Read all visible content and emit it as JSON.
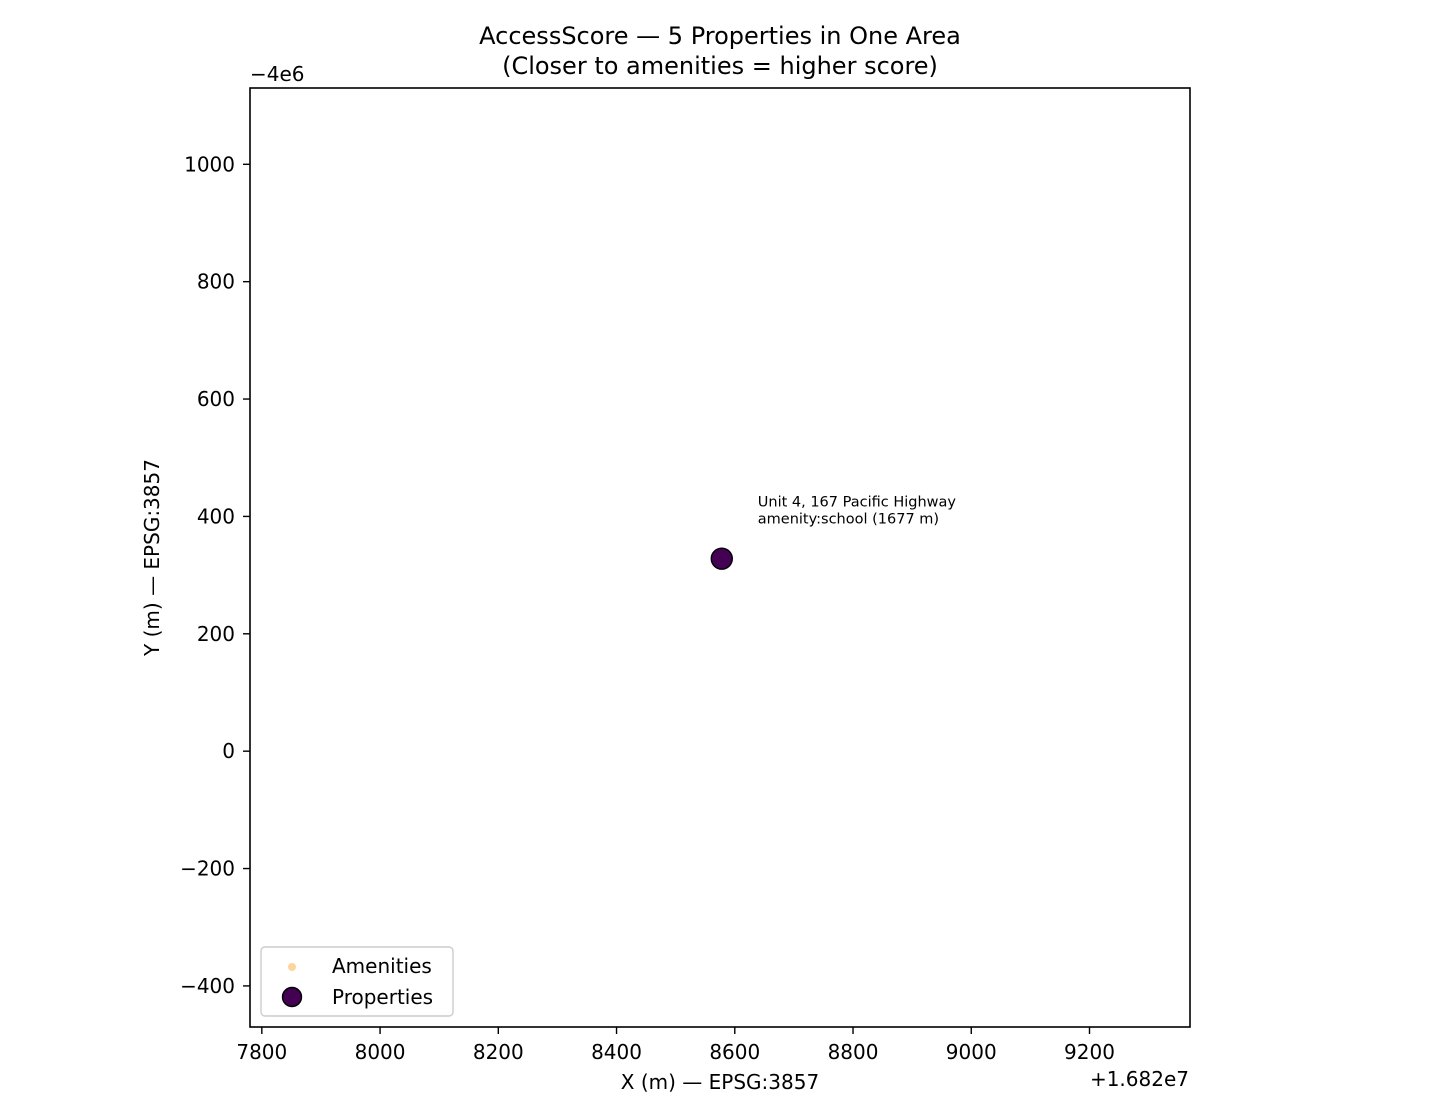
{
  "chart_data": {
    "type": "scatter",
    "title": "AccessScore — 5 Properties in One Area",
    "subtitle": "(Closer to amenities = higher score)",
    "xlabel": "X (m) — EPSG:3857",
    "ylabel": "Y (m) — EPSG:3857",
    "x_offset_text": "+1.682e7",
    "y_offset_text": "−4e6",
    "xlim": [
      7780,
      9370
    ],
    "ylim": [
      -470,
      1130
    ],
    "x_ticks": [
      7800,
      8000,
      8200,
      8400,
      8600,
      8800,
      9000,
      9200
    ],
    "x_tick_labels": [
      "7800",
      "8000",
      "8200",
      "8400",
      "8600",
      "8800",
      "9000",
      "9200"
    ],
    "y_ticks": [
      -400,
      -200,
      0,
      200,
      400,
      600,
      800,
      1000
    ],
    "y_tick_labels": [
      "−400",
      "−200",
      "0",
      "200",
      "400",
      "600",
      "800",
      "1000"
    ],
    "grid": false,
    "legend_position": "lower-left",
    "series": [
      {
        "name": "Amenities",
        "color": "#fdd49e",
        "marker": "small-circle",
        "points": []
      },
      {
        "name": "Properties",
        "color": "#440154",
        "edge_color": "#000000",
        "marker": "large-circle",
        "points": [
          {
            "x": 8578,
            "y": 328,
            "label_line1": "Unit 4, 167 Pacific Highway",
            "label_line2": "amenity:school (1677 m)"
          }
        ]
      }
    ]
  }
}
